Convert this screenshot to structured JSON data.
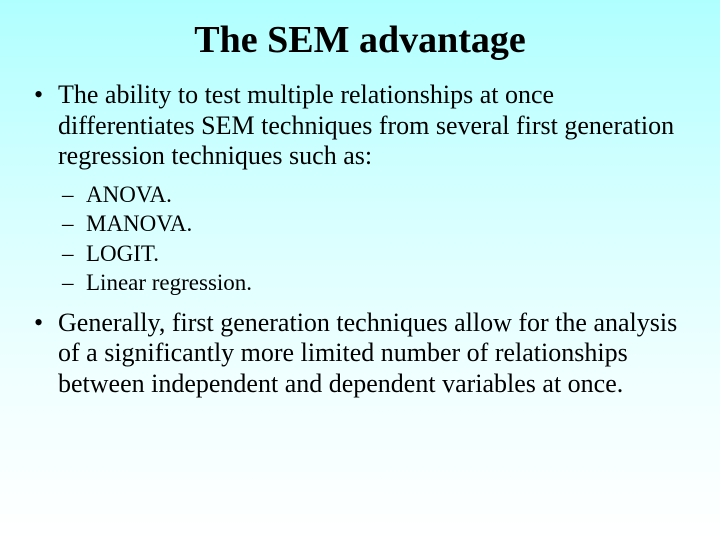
{
  "title": "The SEM advantage",
  "bullets": {
    "first": "The ability to test multiple relationships at once differentiates SEM techniques from several first generation regression techniques such as:",
    "sub": [
      "ANOVA.",
      "MANOVA.",
      "LOGIT.",
      "Linear regression."
    ],
    "second": "Generally, first generation techniques allow for the analysis of a significantly more limited number of relationships between independent and dependent variables at once."
  },
  "colors": {
    "text": "#000000",
    "bg_top": "#b0ffff",
    "bg_bottom": "#ffffff"
  },
  "typography": {
    "title_fontsize": 38,
    "body_fontsize": 26,
    "sub_fontsize": 23,
    "font_family": "Times New Roman"
  }
}
